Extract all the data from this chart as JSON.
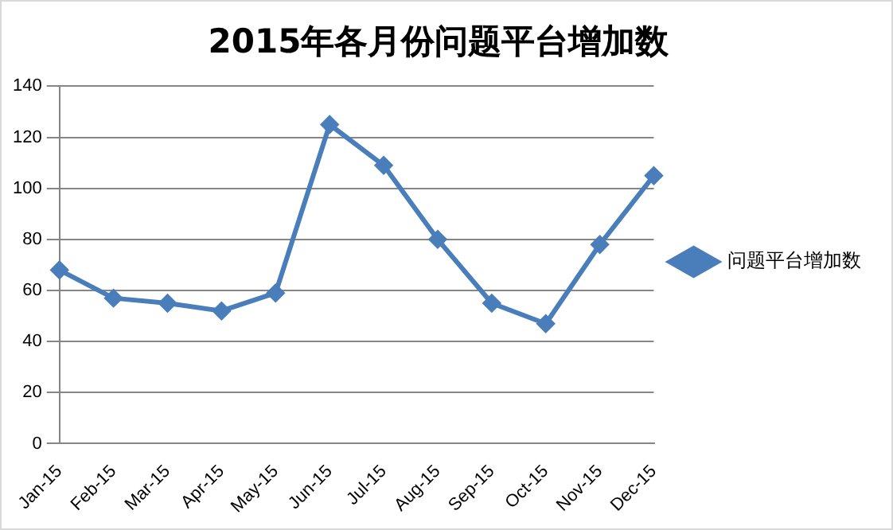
{
  "chart_data": {
    "type": "line",
    "title": "2015年各月份问题平台增加数",
    "categories": [
      "Jan-15",
      "Feb-15",
      "Mar-15",
      "Apr-15",
      "May-15",
      "Jun-15",
      "Jul-15",
      "Aug-15",
      "Sep-15",
      "Oct-15",
      "Nov-15",
      "Dec-15"
    ],
    "series": [
      {
        "name": "问题平台增加数",
        "color": "#4a7ebb",
        "values": [
          68,
          57,
          55,
          52,
          59,
          125,
          109,
          80,
          55,
          47,
          78,
          105
        ]
      }
    ],
    "ylim": [
      0,
      140
    ],
    "yticks": [
      0,
      20,
      40,
      60,
      80,
      100,
      120,
      140
    ],
    "grid": "y",
    "legend": "right",
    "marker": "diamond",
    "line_style": "solid"
  }
}
